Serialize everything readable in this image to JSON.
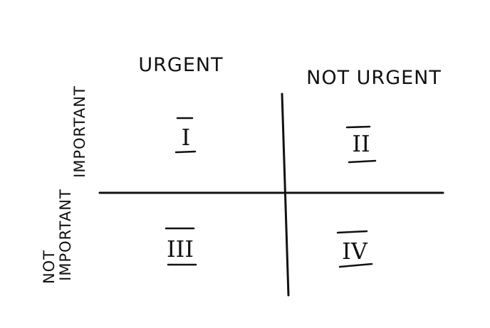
{
  "columns": {
    "urgent": "URGENT",
    "not_urgent": "NOT URGENT"
  },
  "rows": {
    "important": "IMPORTANT",
    "not_important_line1": "NOT",
    "not_important_line2": "IMPORTANT"
  },
  "quadrants": {
    "q1": "I",
    "q2": "II",
    "q3": "III",
    "q4": "IV"
  }
}
